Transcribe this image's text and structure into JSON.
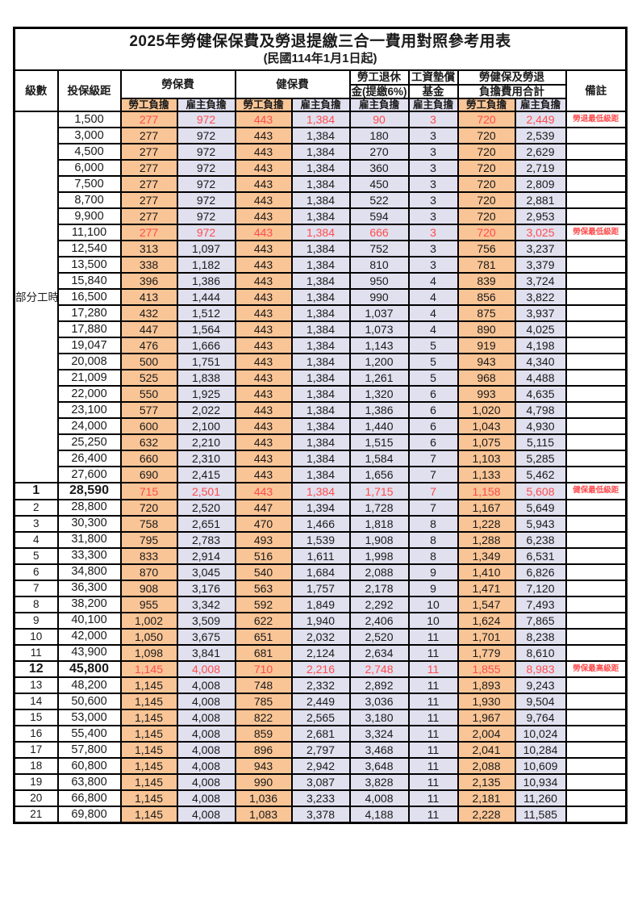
{
  "title": "2025年勞健保保費及勞退提繳三合一費用對照參考用表",
  "subtitle": "(民國114年1月1日起)",
  "colors": {
    "employee_bg": "#fac596",
    "employer_bg": "#e1e0ef",
    "red_text": "#ff4c4c",
    "border": "#000000"
  },
  "header": {
    "level": "級數",
    "bracket": "投保級距",
    "labor_insurance": "勞保費",
    "health_insurance": "健保費",
    "pension_line1": "勞工退休",
    "pension_line2": "金(提繳6%)",
    "wage_fund_line1": "工資墊償",
    "wage_fund_line2": "基金",
    "total_line1": "勞健保及勞退",
    "total_line2": "負擔費用合計",
    "remark": "備註",
    "employee": "勞工負擔",
    "employer": "雇主負擔"
  },
  "table": {
    "part_time": {
      "label": "部分工時",
      "span": 23
    },
    "column_pattern": [
      "emp",
      "er",
      "emp",
      "er",
      "er",
      "er",
      "emp",
      "er"
    ],
    "rows": [
      {
        "level": null,
        "bracket": "1,500",
        "cells": [
          "277",
          "972",
          "443",
          "1,384",
          "90",
          "3",
          "720",
          "2,449"
        ],
        "remark": "勞退最低級距",
        "red": true,
        "bold": false
      },
      {
        "level": null,
        "bracket": "3,000",
        "cells": [
          "277",
          "972",
          "443",
          "1,384",
          "180",
          "3",
          "720",
          "2,539"
        ],
        "remark": "",
        "red": false,
        "bold": false
      },
      {
        "level": null,
        "bracket": "4,500",
        "cells": [
          "277",
          "972",
          "443",
          "1,384",
          "270",
          "3",
          "720",
          "2,629"
        ],
        "remark": "",
        "red": false,
        "bold": false
      },
      {
        "level": null,
        "bracket": "6,000",
        "cells": [
          "277",
          "972",
          "443",
          "1,384",
          "360",
          "3",
          "720",
          "2,719"
        ],
        "remark": "",
        "red": false,
        "bold": false
      },
      {
        "level": null,
        "bracket": "7,500",
        "cells": [
          "277",
          "972",
          "443",
          "1,384",
          "450",
          "3",
          "720",
          "2,809"
        ],
        "remark": "",
        "red": false,
        "bold": false
      },
      {
        "level": null,
        "bracket": "8,700",
        "cells": [
          "277",
          "972",
          "443",
          "1,384",
          "522",
          "3",
          "720",
          "2,881"
        ],
        "remark": "",
        "red": false,
        "bold": false
      },
      {
        "level": null,
        "bracket": "9,900",
        "cells": [
          "277",
          "972",
          "443",
          "1,384",
          "594",
          "3",
          "720",
          "2,953"
        ],
        "remark": "",
        "red": false,
        "bold": false
      },
      {
        "level": null,
        "bracket": "11,100",
        "cells": [
          "277",
          "972",
          "443",
          "1,384",
          "666",
          "3",
          "720",
          "3,025"
        ],
        "remark": "勞保最低級距",
        "red": true,
        "bold": false
      },
      {
        "level": null,
        "bracket": "12,540",
        "cells": [
          "313",
          "1,097",
          "443",
          "1,384",
          "752",
          "3",
          "756",
          "3,237"
        ],
        "remark": "",
        "red": false,
        "bold": false
      },
      {
        "level": null,
        "bracket": "13,500",
        "cells": [
          "338",
          "1,182",
          "443",
          "1,384",
          "810",
          "3",
          "781",
          "3,379"
        ],
        "remark": "",
        "red": false,
        "bold": false
      },
      {
        "level": null,
        "bracket": "15,840",
        "cells": [
          "396",
          "1,386",
          "443",
          "1,384",
          "950",
          "4",
          "839",
          "3,724"
        ],
        "remark": "",
        "red": false,
        "bold": false
      },
      {
        "level": null,
        "bracket": "16,500",
        "cells": [
          "413",
          "1,444",
          "443",
          "1,384",
          "990",
          "4",
          "856",
          "3,822"
        ],
        "remark": "",
        "red": false,
        "bold": false
      },
      {
        "level": null,
        "bracket": "17,280",
        "cells": [
          "432",
          "1,512",
          "443",
          "1,384",
          "1,037",
          "4",
          "875",
          "3,937"
        ],
        "remark": "",
        "red": false,
        "bold": false
      },
      {
        "level": null,
        "bracket": "17,880",
        "cells": [
          "447",
          "1,564",
          "443",
          "1,384",
          "1,073",
          "4",
          "890",
          "4,025"
        ],
        "remark": "",
        "red": false,
        "bold": false
      },
      {
        "level": null,
        "bracket": "19,047",
        "cells": [
          "476",
          "1,666",
          "443",
          "1,384",
          "1,143",
          "5",
          "919",
          "4,198"
        ],
        "remark": "",
        "red": false,
        "bold": false
      },
      {
        "level": null,
        "bracket": "20,008",
        "cells": [
          "500",
          "1,751",
          "443",
          "1,384",
          "1,200",
          "5",
          "943",
          "4,340"
        ],
        "remark": "",
        "red": false,
        "bold": false
      },
      {
        "level": null,
        "bracket": "21,009",
        "cells": [
          "525",
          "1,838",
          "443",
          "1,384",
          "1,261",
          "5",
          "968",
          "4,488"
        ],
        "remark": "",
        "red": false,
        "bold": false
      },
      {
        "level": null,
        "bracket": "22,000",
        "cells": [
          "550",
          "1,925",
          "443",
          "1,384",
          "1,320",
          "6",
          "993",
          "4,635"
        ],
        "remark": "",
        "red": false,
        "bold": false
      },
      {
        "level": null,
        "bracket": "23,100",
        "cells": [
          "577",
          "2,022",
          "443",
          "1,384",
          "1,386",
          "6",
          "1,020",
          "4,798"
        ],
        "remark": "",
        "red": false,
        "bold": false
      },
      {
        "level": null,
        "bracket": "24,000",
        "cells": [
          "600",
          "2,100",
          "443",
          "1,384",
          "1,440",
          "6",
          "1,043",
          "4,930"
        ],
        "remark": "",
        "red": false,
        "bold": false
      },
      {
        "level": null,
        "bracket": "25,250",
        "cells": [
          "632",
          "2,210",
          "443",
          "1,384",
          "1,515",
          "6",
          "1,075",
          "5,115"
        ],
        "remark": "",
        "red": false,
        "bold": false
      },
      {
        "level": null,
        "bracket": "26,400",
        "cells": [
          "660",
          "2,310",
          "443",
          "1,384",
          "1,584",
          "7",
          "1,103",
          "5,285"
        ],
        "remark": "",
        "red": false,
        "bold": false
      },
      {
        "level": null,
        "bracket": "27,600",
        "cells": [
          "690",
          "2,415",
          "443",
          "1,384",
          "1,656",
          "7",
          "1,133",
          "5,462"
        ],
        "remark": "",
        "red": false,
        "bold": false
      },
      {
        "level": "1",
        "bracket": "28,590",
        "cells": [
          "715",
          "2,501",
          "443",
          "1,384",
          "1,715",
          "7",
          "1,158",
          "5,608"
        ],
        "remark": "健保最低級距",
        "red": true,
        "bold": true
      },
      {
        "level": "2",
        "bracket": "28,800",
        "cells": [
          "720",
          "2,520",
          "447",
          "1,394",
          "1,728",
          "7",
          "1,167",
          "5,649"
        ],
        "remark": "",
        "red": false,
        "bold": false
      },
      {
        "level": "3",
        "bracket": "30,300",
        "cells": [
          "758",
          "2,651",
          "470",
          "1,466",
          "1,818",
          "8",
          "1,228",
          "5,943"
        ],
        "remark": "",
        "red": false,
        "bold": false
      },
      {
        "level": "4",
        "bracket": "31,800",
        "cells": [
          "795",
          "2,783",
          "493",
          "1,539",
          "1,908",
          "8",
          "1,288",
          "6,238"
        ],
        "remark": "",
        "red": false,
        "bold": false
      },
      {
        "level": "5",
        "bracket": "33,300",
        "cells": [
          "833",
          "2,914",
          "516",
          "1,611",
          "1,998",
          "8",
          "1,349",
          "6,531"
        ],
        "remark": "",
        "red": false,
        "bold": false
      },
      {
        "level": "6",
        "bracket": "34,800",
        "cells": [
          "870",
          "3,045",
          "540",
          "1,684",
          "2,088",
          "9",
          "1,410",
          "6,826"
        ],
        "remark": "",
        "red": false,
        "bold": false
      },
      {
        "level": "7",
        "bracket": "36,300",
        "cells": [
          "908",
          "3,176",
          "563",
          "1,757",
          "2,178",
          "9",
          "1,471",
          "7,120"
        ],
        "remark": "",
        "red": false,
        "bold": false
      },
      {
        "level": "8",
        "bracket": "38,200",
        "cells": [
          "955",
          "3,342",
          "592",
          "1,849",
          "2,292",
          "10",
          "1,547",
          "7,493"
        ],
        "remark": "",
        "red": false,
        "bold": false
      },
      {
        "level": "9",
        "bracket": "40,100",
        "cells": [
          "1,002",
          "3,509",
          "622",
          "1,940",
          "2,406",
          "10",
          "1,624",
          "7,865"
        ],
        "remark": "",
        "red": false,
        "bold": false
      },
      {
        "level": "10",
        "bracket": "42,000",
        "cells": [
          "1,050",
          "3,675",
          "651",
          "2,032",
          "2,520",
          "11",
          "1,701",
          "8,238"
        ],
        "remark": "",
        "red": false,
        "bold": false
      },
      {
        "level": "11",
        "bracket": "43,900",
        "cells": [
          "1,098",
          "3,841",
          "681",
          "2,124",
          "2,634",
          "11",
          "1,779",
          "8,610"
        ],
        "remark": "",
        "red": false,
        "bold": false
      },
      {
        "level": "12",
        "bracket": "45,800",
        "cells": [
          "1,145",
          "4,008",
          "710",
          "2,216",
          "2,748",
          "11",
          "1,855",
          "8,983"
        ],
        "remark": "勞保最高級距",
        "red": true,
        "bold": true
      },
      {
        "level": "13",
        "bracket": "48,200",
        "cells": [
          "1,145",
          "4,008",
          "748",
          "2,332",
          "2,892",
          "11",
          "1,893",
          "9,243"
        ],
        "remark": "",
        "red": false,
        "bold": false
      },
      {
        "level": "14",
        "bracket": "50,600",
        "cells": [
          "1,145",
          "4,008",
          "785",
          "2,449",
          "3,036",
          "11",
          "1,930",
          "9,504"
        ],
        "remark": "",
        "red": false,
        "bold": false
      },
      {
        "level": "15",
        "bracket": "53,000",
        "cells": [
          "1,145",
          "4,008",
          "822",
          "2,565",
          "3,180",
          "11",
          "1,967",
          "9,764"
        ],
        "remark": "",
        "red": false,
        "bold": false
      },
      {
        "level": "16",
        "bracket": "55,400",
        "cells": [
          "1,145",
          "4,008",
          "859",
          "2,681",
          "3,324",
          "11",
          "2,004",
          "10,024"
        ],
        "remark": "",
        "red": false,
        "bold": false
      },
      {
        "level": "17",
        "bracket": "57,800",
        "cells": [
          "1,145",
          "4,008",
          "896",
          "2,797",
          "3,468",
          "11",
          "2,041",
          "10,284"
        ],
        "remark": "",
        "red": false,
        "bold": false
      },
      {
        "level": "18",
        "bracket": "60,800",
        "cells": [
          "1,145",
          "4,008",
          "943",
          "2,942",
          "3,648",
          "11",
          "2,088",
          "10,609"
        ],
        "remark": "",
        "red": false,
        "bold": false
      },
      {
        "level": "19",
        "bracket": "63,800",
        "cells": [
          "1,145",
          "4,008",
          "990",
          "3,087",
          "3,828",
          "11",
          "2,135",
          "10,934"
        ],
        "remark": "",
        "red": false,
        "bold": false
      },
      {
        "level": "20",
        "bracket": "66,800",
        "cells": [
          "1,145",
          "4,008",
          "1,036",
          "3,233",
          "4,008",
          "11",
          "2,181",
          "11,260"
        ],
        "remark": "",
        "red": false,
        "bold": false
      },
      {
        "level": "21",
        "bracket": "69,800",
        "cells": [
          "1,145",
          "4,008",
          "1,083",
          "3,378",
          "4,188",
          "11",
          "2,228",
          "11,585"
        ],
        "remark": "",
        "red": false,
        "bold": false
      }
    ]
  }
}
